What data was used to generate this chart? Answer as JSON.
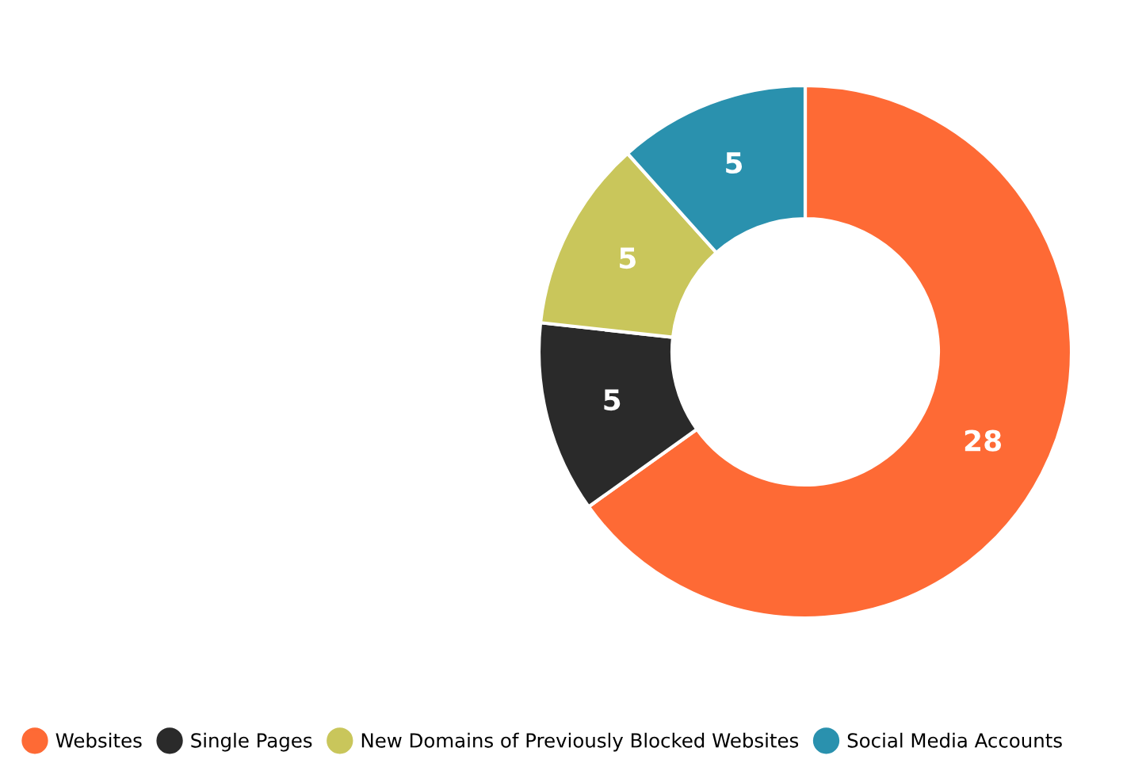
{
  "chart_data": {
    "type": "donut",
    "categories": [
      "Websites",
      "Single Pages",
      "New Domains of Previously Blocked Websites",
      "Social Media Accounts"
    ],
    "values": [
      28,
      5,
      5,
      5
    ],
    "colors": [
      "#fe6a35",
      "#2a2a2a",
      "#c9c65b",
      "#2a91ae"
    ],
    "data_labels": true,
    "legend": "bottom left"
  }
}
